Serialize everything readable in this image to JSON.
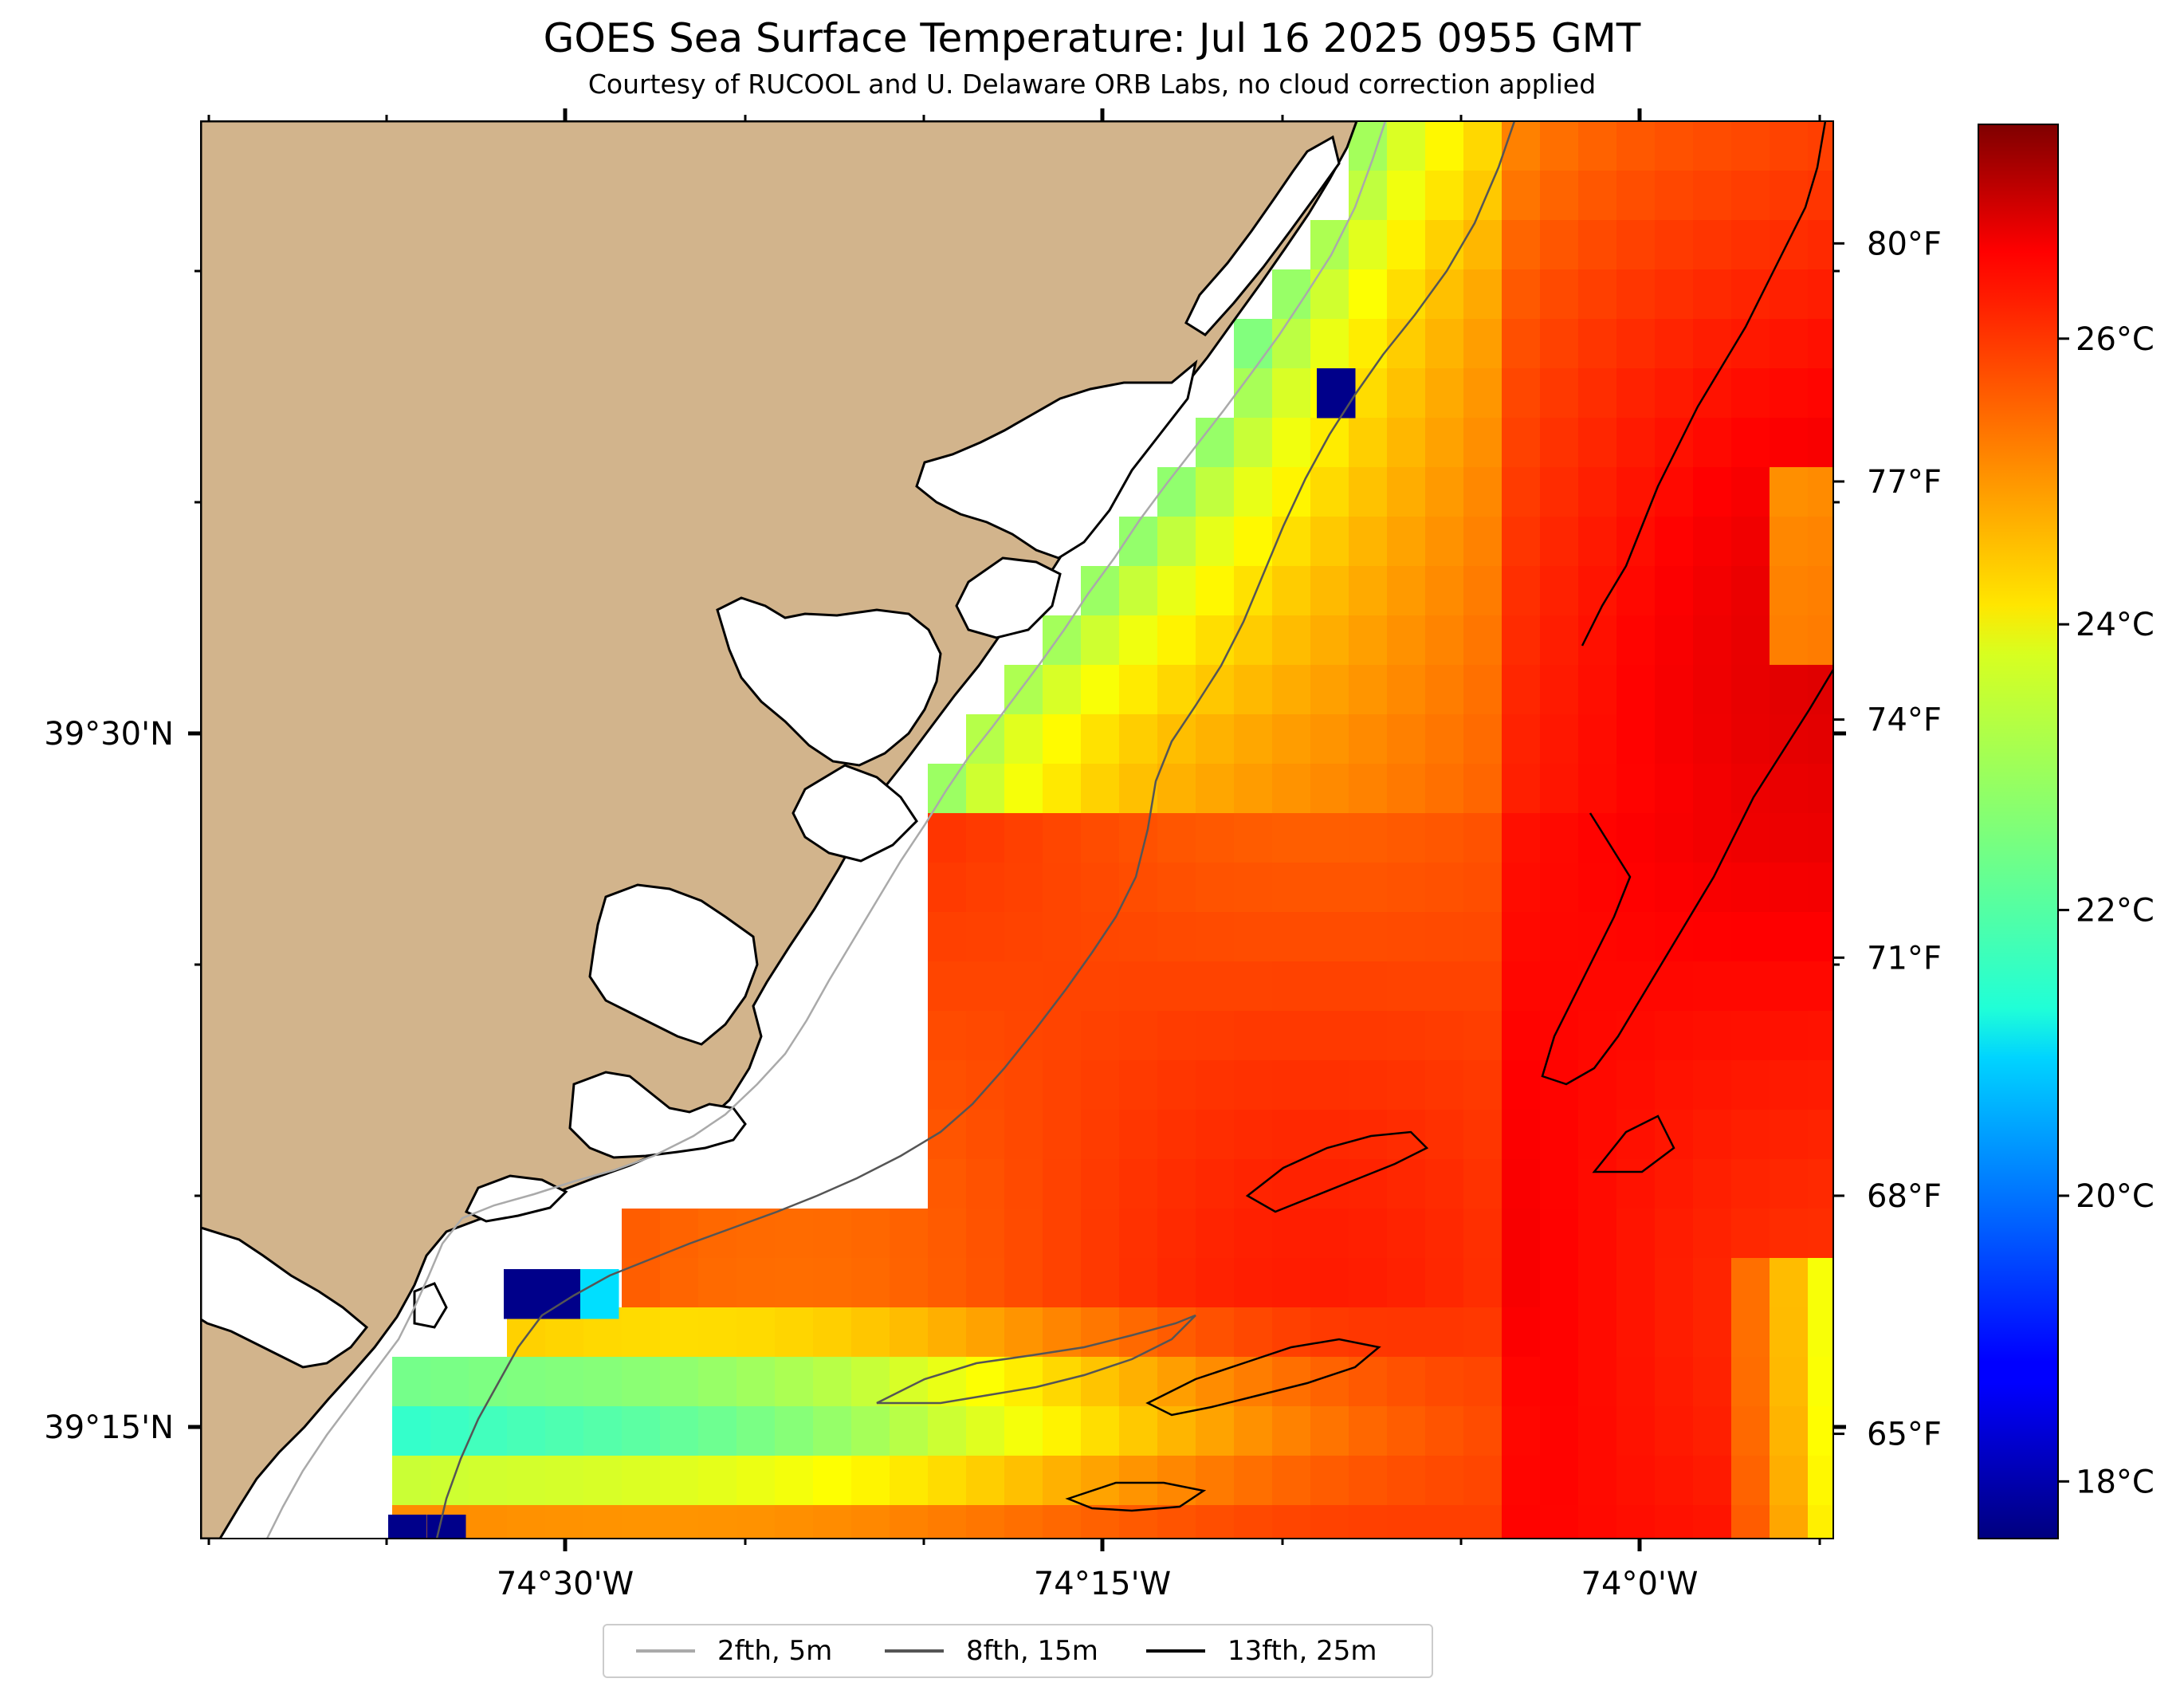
{
  "title": "GOES Sea Surface Temperature: Jul 16 2025 0955 GMT",
  "subtitle": "Courtesy of RUCOOL and U. Delaware ORB Labs, no cloud correction applied",
  "map": {
    "lon_ticks": [
      "74°30'W",
      "74°15'W",
      "74°0'W"
    ],
    "lat_ticks": [
      "39°30'N",
      "39°15'N"
    ],
    "land_color": "#d2b48c",
    "nodata_color": "#ffffff"
  },
  "colorbar": {
    "colormap": "jet",
    "range_c": [
      17.6,
      27.5
    ],
    "celsius_ticks": [
      "18°C",
      "20°C",
      "22°C",
      "24°C",
      "26°C"
    ],
    "fahrenheit_ticks": [
      "65°F",
      "68°F",
      "71°F",
      "74°F",
      "77°F",
      "80°F"
    ]
  },
  "legend": {
    "items": [
      {
        "label": "2fth, 5m",
        "color": "#aaaaaa"
      },
      {
        "label": "8fth, 15m",
        "color": "#555555"
      },
      {
        "label": "13fth, 25m",
        "color": "#000000"
      }
    ]
  }
}
